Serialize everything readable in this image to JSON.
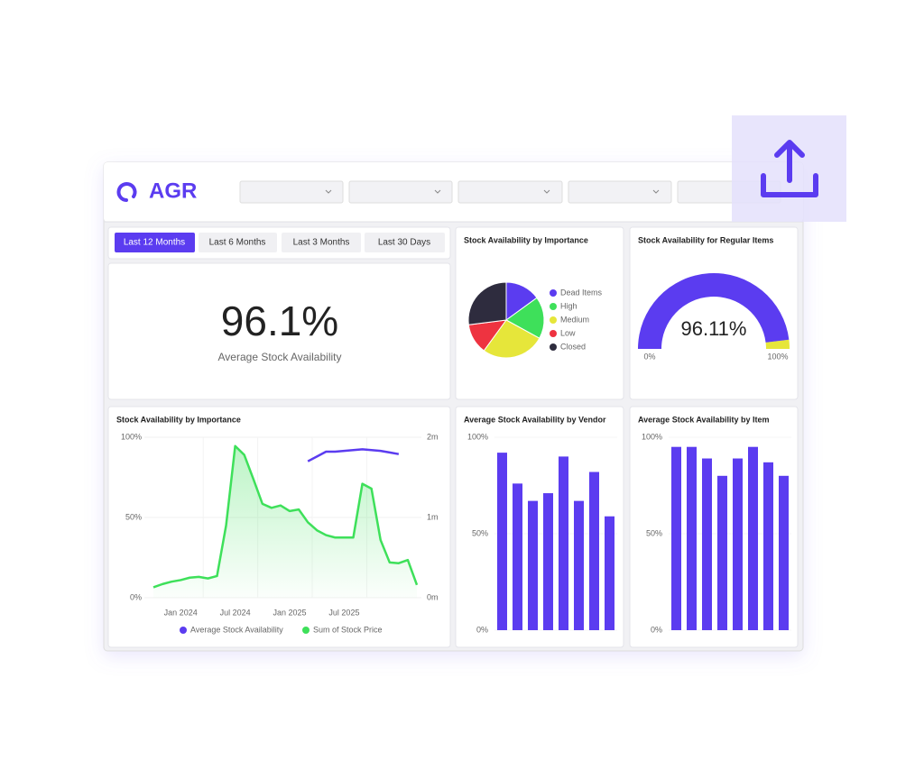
{
  "header": {
    "logo": "AGR"
  },
  "filters": {
    "periods": [
      "Last 12 Months",
      "Last 6 Months",
      "Last 3 Months",
      "Last 30 Days"
    ]
  },
  "kpi": {
    "value": "96.1%",
    "label": "Average Stock Availability"
  },
  "chart_data": [
    {
      "type": "pie",
      "title": "Stock Availability by Importance",
      "categories": [
        "Dead Items",
        "High",
        "Medium",
        "Low",
        "Closed"
      ],
      "values": [
        15,
        18,
        27,
        13,
        27
      ],
      "colors": [
        "#5b3cf0",
        "#3ee05a",
        "#e6e63a",
        "#ee3340",
        "#2e2c3e"
      ]
    },
    {
      "type": "gauge",
      "title": "Stock Availability for Regular Items",
      "value": 96.11,
      "value_label": "96.11%",
      "ylim": [
        0,
        100
      ],
      "yticks": [
        {
          "value": 0,
          "label": "0%"
        },
        {
          "value": 100,
          "label": "100%"
        }
      ],
      "color": "#5b3cf0",
      "track_color": "#e6e63a"
    },
    {
      "type": "line",
      "title": "Stock Availability by Importance",
      "x": [
        "2023-10",
        "2023-11",
        "2023-12",
        "2024-01",
        "2024-02",
        "2024-03",
        "2024-04",
        "2024-05",
        "2024-06",
        "2024-07",
        "2024-08",
        "2024-09",
        "2024-10",
        "2024-11",
        "2024-12",
        "2025-01",
        "2025-02",
        "2025-03",
        "2025-04",
        "2025-05",
        "2025-06",
        "2025-07",
        "2025-08",
        "2025-09",
        "2025-10",
        "2025-11",
        "2025-12",
        "2026-01",
        "2026-02",
        "2026-03"
      ],
      "xlim": [
        "2023-10",
        "2026-03"
      ],
      "xticks": [
        {
          "value": "2024-01",
          "label": "Jan 2024"
        },
        {
          "value": "2024-07",
          "label": "Jul 2024"
        },
        {
          "value": "2025-01",
          "label": "Jan 2025"
        },
        {
          "value": "2025-07",
          "label": "Jul 2025"
        }
      ],
      "ylim": [
        0,
        100
      ],
      "yticks": [
        {
          "value": 0,
          "label": "0%"
        },
        {
          "value": 50,
          "label": "50%"
        },
        {
          "value": 100,
          "label": "100%"
        }
      ],
      "y2lim": [
        0,
        2
      ],
      "y2ticks": [
        {
          "value": 0,
          "label": "0m"
        },
        {
          "value": 1,
          "label": "1m"
        },
        {
          "value": 2,
          "label": "2m"
        }
      ],
      "series": [
        {
          "name": "Average Stock Availability",
          "color": "#5b3cf0",
          "values": [
            null,
            null,
            null,
            null,
            null,
            null,
            null,
            null,
            null,
            null,
            null,
            null,
            null,
            null,
            null,
            null,
            null,
            85,
            88,
            91,
            91,
            91.5,
            92,
            92.5,
            92,
            91.5,
            90.5,
            89.5,
            null,
            null
          ]
        },
        {
          "name": "Sum of Stock Price",
          "color": "#3ee05a",
          "axis": "y2",
          "area": true,
          "values": [
            0.13,
            0.17,
            0.2,
            0.22,
            0.25,
            0.26,
            0.24,
            0.27,
            0.9,
            1.89,
            1.78,
            1.48,
            1.17,
            1.12,
            1.15,
            1.08,
            1.1,
            0.94,
            0.84,
            0.78,
            0.75,
            0.75,
            0.75,
            1.42,
            1.36,
            0.72,
            0.44,
            0.43,
            0.47,
            0.16
          ]
        }
      ]
    },
    {
      "type": "bar",
      "title": "Average Stock Availability by Vendor",
      "categories": [
        null,
        null,
        null,
        null,
        null,
        null,
        null,
        null
      ],
      "values": [
        92,
        76,
        67,
        71,
        90,
        67,
        82,
        59
      ],
      "color": "#5b3cf0",
      "ylim": [
        0,
        100
      ],
      "yticks": [
        {
          "value": 0,
          "label": "0%"
        },
        {
          "value": 50,
          "label": "50%"
        },
        {
          "value": 100,
          "label": "100%"
        }
      ]
    },
    {
      "type": "bar",
      "title": "Average Stock Availability by Item",
      "categories": [
        null,
        null,
        null,
        null,
        null,
        null,
        null,
        null
      ],
      "values": [
        95,
        95,
        89,
        80,
        89,
        95,
        87,
        80
      ],
      "color": "#5b3cf0",
      "ylim": [
        0,
        100
      ],
      "yticks": [
        {
          "value": 0,
          "label": "0%"
        },
        {
          "value": 50,
          "label": "50%"
        },
        {
          "value": 100,
          "label": "100%"
        }
      ]
    }
  ]
}
